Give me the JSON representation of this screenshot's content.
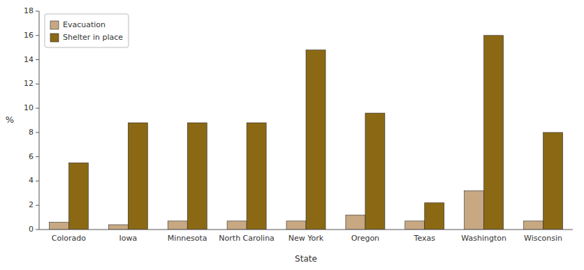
{
  "chart_data": {
    "type": "bar",
    "categories": [
      "Colorado",
      "Iowa",
      "Minnesota",
      "North Carolina",
      "New York",
      "Oregon",
      "Texas",
      "Washington",
      "Wisconsin"
    ],
    "series": [
      {
        "name": "Evacuation",
        "color": "#C8A882",
        "values": [
          0.6,
          0.4,
          0.7,
          0.7,
          0.7,
          1.2,
          0.7,
          3.2,
          0.7
        ]
      },
      {
        "name": "Shelter in place",
        "color": "#8B6914",
        "values": [
          5.5,
          8.8,
          8.8,
          8.8,
          14.8,
          9.6,
          2.2,
          16.0,
          8.0
        ]
      }
    ],
    "xlabel": "State",
    "ylabel": "%",
    "ylim": [
      0,
      18
    ],
    "yticks": [
      0,
      2,
      4,
      6,
      8,
      10,
      12,
      14,
      16,
      18
    ],
    "legend": "upper left"
  }
}
